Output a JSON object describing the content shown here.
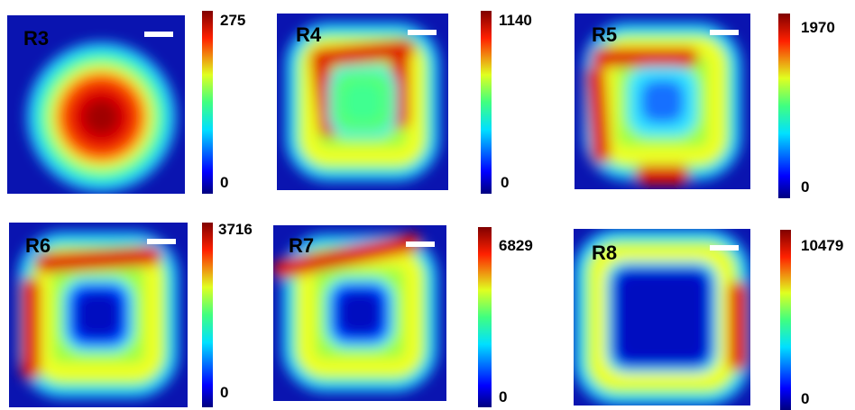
{
  "panels": [
    {
      "label": "R3",
      "max": 275,
      "min": 0
    },
    {
      "label": "R4",
      "max": 1140,
      "min": 0
    },
    {
      "label": "R5",
      "max": 1970,
      "min": 0
    },
    {
      "label": "R6",
      "max": 3716,
      "min": 0
    },
    {
      "label": "R7",
      "max": 6829,
      "min": 0
    },
    {
      "label": "R8",
      "max": 10479,
      "min": 0
    }
  ]
}
